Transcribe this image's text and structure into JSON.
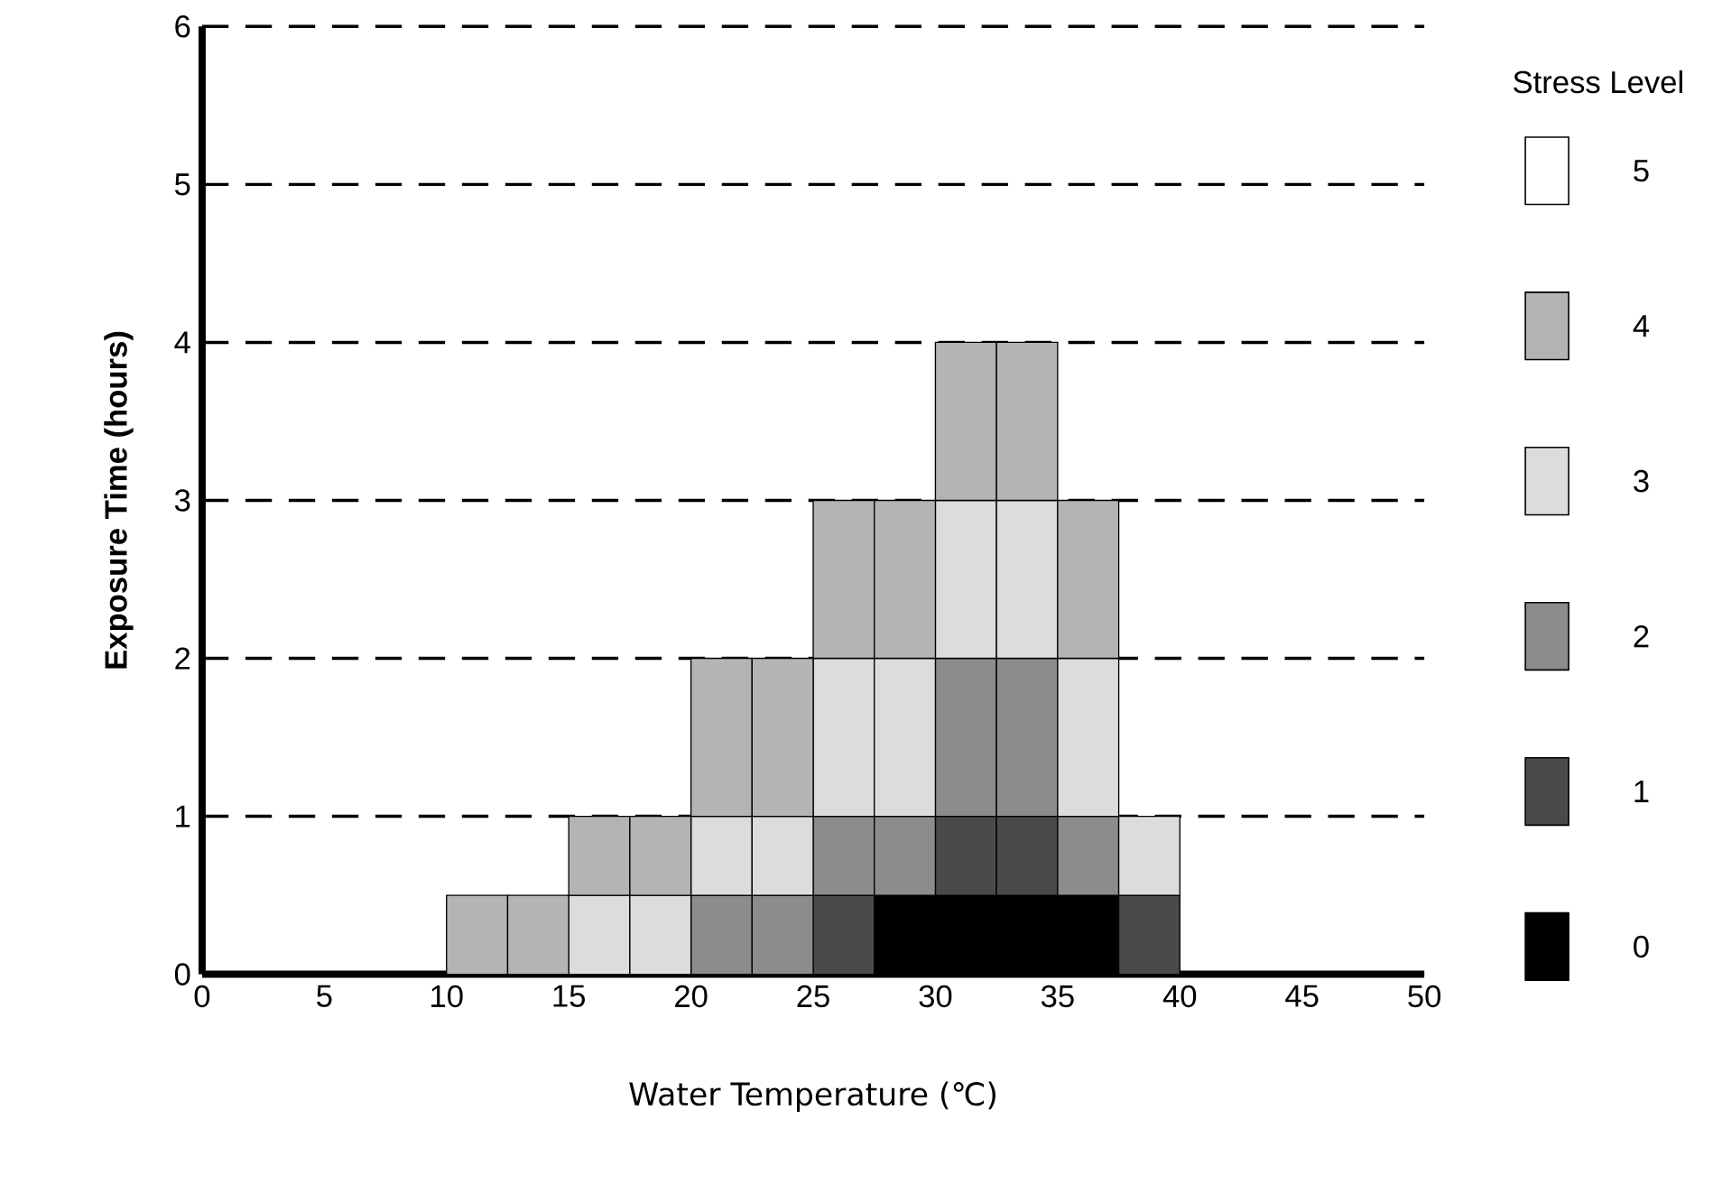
{
  "chart_data": {
    "type": "bar",
    "stacked": true,
    "xlabel": "Water Temperature (℃)",
    "ylabel": "Exposure Time (hours)",
    "legend_title": "Stress Level",
    "legend": "right",
    "grid": "y",
    "xlim": [
      0,
      50
    ],
    "xticks": [
      0,
      5,
      10,
      15,
      20,
      25,
      30,
      35,
      40,
      45,
      50
    ],
    "ylim": [
      0,
      6
    ],
    "yticks": [
      0,
      1,
      2,
      3,
      4,
      5,
      6
    ],
    "x": [
      11.25,
      13.75,
      16.25,
      18.75,
      21.25,
      23.75,
      26.25,
      28.75,
      31.25,
      33.75,
      36.25,
      38.75
    ],
    "series": [
      {
        "name": "0",
        "color": "#000000",
        "values": [
          null,
          null,
          null,
          null,
          null,
          null,
          null,
          0.5,
          0.5,
          0.5,
          0.5,
          null
        ]
      },
      {
        "name": "1",
        "color": "#4a4a4a",
        "values": [
          null,
          null,
          null,
          null,
          null,
          null,
          0.5,
          null,
          0.5,
          0.5,
          null,
          0.5
        ]
      },
      {
        "name": "2",
        "color": "#8c8c8c",
        "values": [
          null,
          null,
          null,
          null,
          0.5,
          0.5,
          0.5,
          0.5,
          1,
          1,
          0.5,
          null
        ]
      },
      {
        "name": "3",
        "color": "#dcdcdc",
        "values": [
          null,
          null,
          0.5,
          0.5,
          0.5,
          0.5,
          1,
          1,
          1,
          1,
          1,
          0.5
        ]
      },
      {
        "name": "4",
        "color": "#b4b4b4",
        "values": [
          0.5,
          0.5,
          0.5,
          0.5,
          1,
          1,
          1,
          1,
          1,
          1,
          1,
          null
        ]
      },
      {
        "name": "5",
        "color": "#ffffff",
        "values": [
          null,
          null,
          null,
          null,
          null,
          null,
          null,
          null,
          null,
          null,
          null,
          null
        ]
      }
    ]
  }
}
